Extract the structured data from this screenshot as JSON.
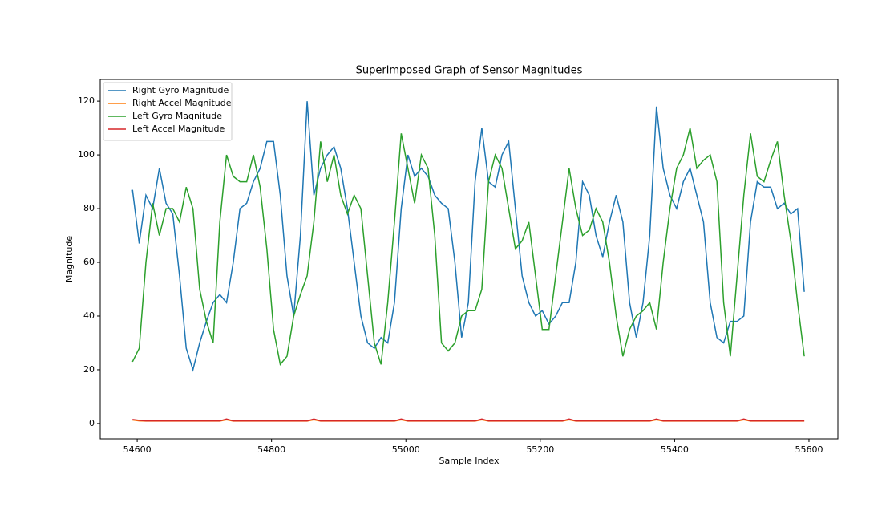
{
  "chart_data": {
    "type": "line",
    "title": "Superimposed Graph of Sensor Magnitudes",
    "x_label": "Sample Index",
    "y_label": "Magnitude",
    "x": [
      54593,
      54603,
      54613,
      54623,
      54633,
      54643,
      54653,
      54663,
      54673,
      54683,
      54693,
      54703,
      54713,
      54723,
      54733,
      54743,
      54753,
      54763,
      54773,
      54783,
      54793,
      54803,
      54813,
      54823,
      54833,
      54843,
      54853,
      54863,
      54873,
      54883,
      54893,
      54903,
      54913,
      54923,
      54933,
      54943,
      54953,
      54963,
      54973,
      54983,
      54993,
      55003,
      55013,
      55023,
      55033,
      55043,
      55053,
      55063,
      55073,
      55083,
      55093,
      55103,
      55113,
      55123,
      55133,
      55143,
      55153,
      55163,
      55173,
      55183,
      55193,
      55203,
      55213,
      55223,
      55233,
      55243,
      55253,
      55263,
      55273,
      55283,
      55293,
      55303,
      55313,
      55323,
      55333,
      55343,
      55353,
      55363,
      55373,
      55383,
      55393,
      55403,
      55413,
      55423,
      55433,
      55443,
      55453,
      55463,
      55473,
      55483,
      55493,
      55503,
      55513,
      55523,
      55533,
      55543,
      55553,
      55563,
      55573,
      55583,
      55593
    ],
    "series": [
      {
        "name": "Right Gyro Magnitude",
        "color": "#1f77b4",
        "values": [
          87,
          67,
          85,
          80,
          95,
          82,
          78,
          55,
          28,
          20,
          30,
          38,
          45,
          48,
          45,
          60,
          80,
          82,
          90,
          95,
          105,
          105,
          85,
          55,
          40,
          70,
          120,
          85,
          95,
          100,
          103,
          95,
          80,
          60,
          40,
          30,
          28,
          32,
          30,
          45,
          80,
          100,
          92,
          95,
          92,
          85,
          82,
          80,
          60,
          32,
          45,
          90,
          110,
          90,
          88,
          100,
          105,
          80,
          55,
          45,
          40,
          42,
          37,
          40,
          45,
          45,
          60,
          90,
          85,
          70,
          62,
          75,
          85,
          75,
          45,
          32,
          45,
          70,
          118,
          95,
          85,
          80,
          90,
          95,
          85,
          75,
          45,
          32,
          30,
          38,
          38,
          40,
          75,
          90,
          88,
          88,
          80,
          82,
          78,
          80,
          49
        ]
      },
      {
        "name": "Right Accel Magnitude",
        "color": "#ff7f0e",
        "values": [
          1.3,
          1.0,
          0.9,
          0.9,
          0.9,
          0.9,
          0.9,
          0.9,
          0.9,
          0.9,
          0.9,
          0.9,
          0.9,
          0.9,
          1.4,
          0.9,
          0.9,
          0.9,
          0.9,
          0.9,
          0.9,
          0.9,
          0.9,
          0.9,
          0.9,
          0.9,
          0.9,
          1.4,
          0.9,
          0.9,
          0.9,
          0.9,
          0.9,
          0.9,
          0.9,
          0.9,
          0.9,
          0.9,
          0.9,
          0.9,
          1.4,
          0.9,
          0.9,
          0.9,
          0.9,
          0.9,
          0.9,
          0.9,
          0.9,
          0.9,
          0.9,
          0.9,
          1.4,
          0.9,
          0.9,
          0.9,
          0.9,
          0.9,
          0.9,
          0.9,
          0.9,
          0.9,
          0.9,
          0.9,
          0.9,
          1.4,
          0.9,
          0.9,
          0.9,
          0.9,
          0.9,
          0.9,
          0.9,
          0.9,
          0.9,
          0.9,
          0.9,
          0.9,
          1.4,
          0.9,
          0.9,
          0.9,
          0.9,
          0.9,
          0.9,
          0.9,
          0.9,
          0.9,
          0.9,
          0.9,
          0.9,
          1.4,
          0.9,
          0.9,
          0.9,
          0.9,
          0.9,
          0.9,
          0.9,
          0.9,
          0.9
        ]
      },
      {
        "name": "Left Gyro Magnitude",
        "color": "#2ca02c",
        "values": [
          23,
          28,
          60,
          82,
          70,
          80,
          80,
          75,
          88,
          80,
          50,
          38,
          30,
          75,
          100,
          92,
          90,
          90,
          100,
          88,
          65,
          35,
          22,
          25,
          40,
          48,
          55,
          75,
          105,
          90,
          100,
          85,
          78,
          85,
          80,
          55,
          30,
          22,
          45,
          75,
          108,
          95,
          82,
          100,
          95,
          70,
          30,
          27,
          30,
          40,
          42,
          42,
          50,
          90,
          100,
          95,
          80,
          65,
          68,
          75,
          55,
          35,
          35,
          55,
          75,
          95,
          80,
          70,
          72,
          80,
          75,
          60,
          40,
          25,
          35,
          40,
          42,
          45,
          35,
          60,
          80,
          95,
          100,
          110,
          95,
          98,
          100,
          90,
          45,
          25,
          55,
          85,
          108,
          92,
          90,
          98,
          105,
          85,
          68,
          45,
          25
        ]
      },
      {
        "name": "Left Accel Magnitude",
        "color": "#d62728",
        "values": [
          1.5,
          1.2,
          1.0,
          1.0,
          1.0,
          1.0,
          1.0,
          1.0,
          1.0,
          1.0,
          1.0,
          1.0,
          1.0,
          1.0,
          1.7,
          1.0,
          1.0,
          1.0,
          1.0,
          1.0,
          1.0,
          1.0,
          1.0,
          1.0,
          1.0,
          1.0,
          1.0,
          1.7,
          1.0,
          1.0,
          1.0,
          1.0,
          1.0,
          1.0,
          1.0,
          1.0,
          1.0,
          1.0,
          1.0,
          1.0,
          1.7,
          1.0,
          1.0,
          1.0,
          1.0,
          1.0,
          1.0,
          1.0,
          1.0,
          1.0,
          1.0,
          1.0,
          1.7,
          1.0,
          1.0,
          1.0,
          1.0,
          1.0,
          1.0,
          1.0,
          1.0,
          1.0,
          1.0,
          1.0,
          1.0,
          1.7,
          1.0,
          1.0,
          1.0,
          1.0,
          1.0,
          1.0,
          1.0,
          1.0,
          1.0,
          1.0,
          1.0,
          1.0,
          1.7,
          1.0,
          1.0,
          1.0,
          1.0,
          1.0,
          1.0,
          1.0,
          1.0,
          1.0,
          1.0,
          1.0,
          1.0,
          1.7,
          1.0,
          1.0,
          1.0,
          1.0,
          1.0,
          1.0,
          1.0,
          1.0,
          1.0
        ]
      }
    ],
    "xlim": [
      54545,
      55643
    ],
    "ylim": [
      -5.7,
      128.1
    ],
    "xticks": [
      54600,
      54800,
      55000,
      55200,
      55400,
      55600
    ],
    "yticks": [
      0,
      20,
      40,
      60,
      80,
      100,
      120
    ],
    "legend": "upper left",
    "grid": false
  }
}
